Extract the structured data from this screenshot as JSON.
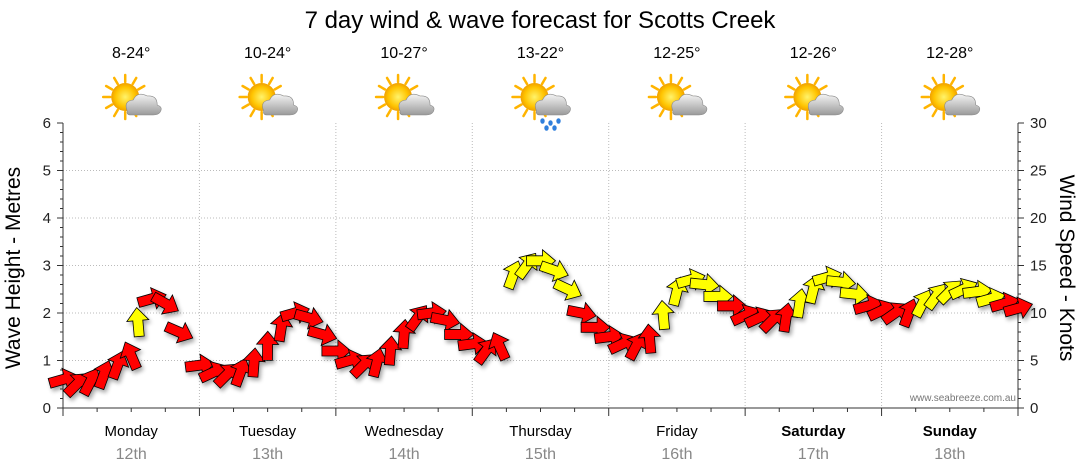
{
  "chart_data": {
    "type": "scatter",
    "title": "7 day wind & wave forecast for Scotts Creek",
    "ylabel_left": "Wave Height - Metres",
    "ylabel_right": "Wind Speed - Knots",
    "ylim_left": [
      0,
      6
    ],
    "ylim_right": [
      0,
      30
    ],
    "yticks_left": [
      "0",
      "1",
      "2",
      "3",
      "4",
      "5",
      "6"
    ],
    "yticks_right": [
      "0",
      "5",
      "10",
      "15",
      "20",
      "25",
      "30"
    ],
    "grid": true,
    "credit": "www.seabreeze.com.au",
    "days": [
      {
        "name": "Monday",
        "date": "12th",
        "temp": "8-24°",
        "weather": "partly-cloudy-icon",
        "bold": false
      },
      {
        "name": "Tuesday",
        "date": "13th",
        "temp": "10-24°",
        "weather": "partly-cloudy-icon",
        "bold": false
      },
      {
        "name": "Wednesday",
        "date": "14th",
        "temp": "10-27°",
        "weather": "partly-cloudy-icon",
        "bold": false
      },
      {
        "name": "Thursday",
        "date": "15th",
        "temp": "13-22°",
        "weather": "showers-icon",
        "bold": false
      },
      {
        "name": "Friday",
        "date": "16th",
        "temp": "12-25°",
        "weather": "partly-cloudy-icon",
        "bold": false
      },
      {
        "name": "Saturday",
        "date": "17th",
        "temp": "12-26°",
        "weather": "partly-cloudy-icon",
        "bold": true
      },
      {
        "name": "Sunday",
        "date": "18th",
        "temp": "12-28°",
        "weather": "partly-cloudy-icon",
        "bold": true
      }
    ],
    "wind_colors": {
      "offshore": "#ff0000",
      "onshore": "#ffff00"
    },
    "wave_series": {
      "name": "Wave Height",
      "note": "x = day index (0 = Monday 12th) + fraction of day; y = metres",
      "x": [
        0.0,
        0.1,
        0.2,
        0.3,
        0.4,
        0.5,
        0.55,
        0.65,
        0.75,
        0.85,
        1.0,
        1.1,
        1.2,
        1.3,
        1.4,
        1.5,
        1.6,
        1.7,
        1.8,
        1.9,
        2.0,
        2.1,
        2.2,
        2.3,
        2.4,
        2.5,
        2.6,
        2.7,
        2.8,
        2.9,
        3.0,
        3.1,
        3.2,
        3.3,
        3.4,
        3.5,
        3.6,
        3.7,
        3.8,
        3.9,
        4.0,
        4.1,
        4.2,
        4.3,
        4.4,
        4.5,
        4.6,
        4.7,
        4.8,
        4.9,
        5.0,
        5.1,
        5.2,
        5.3,
        5.4,
        5.5,
        5.6,
        5.7,
        5.8,
        5.9,
        6.0,
        6.1,
        6.2,
        6.3,
        6.4,
        6.5,
        6.6,
        6.7,
        6.8,
        6.9,
        7.0
      ],
      "y": [
        0.6,
        0.5,
        0.55,
        0.7,
        0.9,
        1.1,
        1.8,
        2.3,
        2.2,
        1.6,
        0.9,
        0.75,
        0.7,
        0.75,
        0.95,
        1.3,
        1.7,
        2.0,
        1.9,
        1.55,
        1.2,
        1.0,
        0.9,
        0.95,
        1.2,
        1.55,
        1.9,
        2.0,
        1.85,
        1.55,
        1.35,
        1.2,
        1.3,
        2.8,
        3.0,
        3.1,
        2.9,
        2.5,
        2.0,
        1.7,
        1.5,
        1.35,
        1.3,
        1.45,
        1.95,
        2.45,
        2.7,
        2.6,
        2.35,
        2.15,
        1.95,
        1.9,
        1.85,
        1.9,
        2.2,
        2.5,
        2.75,
        2.65,
        2.4,
        2.15,
        2.05,
        2.0,
        2.0,
        2.2,
        2.35,
        2.45,
        2.5,
        2.45,
        2.3,
        2.2,
        2.1
      ],
      "colors": [
        "r",
        "r",
        "r",
        "r",
        "r",
        "r",
        "y",
        "r",
        "r",
        "r",
        "r",
        "r",
        "r",
        "r",
        "r",
        "r",
        "r",
        "r",
        "r",
        "r",
        "r",
        "r",
        "r",
        "r",
        "r",
        "r",
        "r",
        "r",
        "r",
        "r",
        "r",
        "r",
        "r",
        "y",
        "y",
        "y",
        "y",
        "y",
        "r",
        "r",
        "r",
        "r",
        "r",
        "r",
        "y",
        "y",
        "y",
        "y",
        "y",
        "r",
        "r",
        "r",
        "r",
        "r",
        "y",
        "y",
        "y",
        "y",
        "y",
        "r",
        "r",
        "r",
        "r",
        "y",
        "y",
        "y",
        "y",
        "y",
        "y",
        "r",
        "r"
      ]
    }
  }
}
